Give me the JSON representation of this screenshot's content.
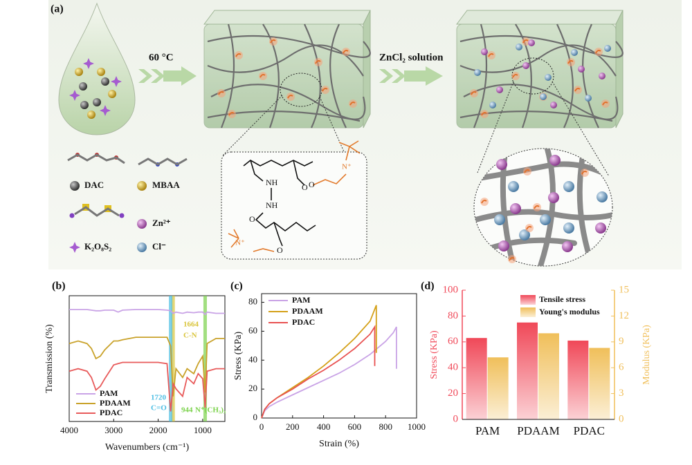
{
  "figure": {
    "label": "(a)",
    "step1": "60 °C",
    "step2": "ZnCl₂ solution",
    "legend": [
      "DAC",
      "MBAA",
      "K₂O₈S₂",
      "Zn²⁺",
      "Cl⁻"
    ],
    "structure": [
      "NH",
      "O",
      "O",
      "NH",
      "O",
      "O",
      "N⁺",
      "N⁺"
    ]
  },
  "chart_data": [
    {
      "type": "line",
      "label": "(b)",
      "xlabel": "Wavenumbers (cm⁻¹)",
      "ylabel": "Transmission (%)",
      "x": [
        4000,
        3800,
        3600,
        3500,
        3400,
        3300,
        3200,
        3000,
        2900,
        2800,
        2500,
        2200,
        2000,
        1800,
        1720,
        1664,
        1600,
        1450,
        1350,
        1200,
        1100,
        1000,
        944,
        900,
        700,
        500
      ],
      "xlim": [
        4000,
        500
      ],
      "xticks": [
        4000,
        3000,
        2000,
        1000
      ],
      "ylim": [
        0,
        100
      ],
      "legend": "lower left",
      "series": [
        {
          "name": "PAM",
          "color": "#c9a3e6",
          "values": [
            89,
            89,
            89,
            88.5,
            88,
            88,
            88.5,
            88.5,
            87,
            88.5,
            89,
            89,
            89,
            88.5,
            88,
            86,
            87,
            86,
            87,
            86.5,
            87,
            87,
            85,
            87,
            86,
            86
          ]
        },
        {
          "name": "PDAAM",
          "color": "#c9a22a",
          "values": [
            62,
            64,
            62,
            58,
            50,
            52,
            57,
            64,
            64,
            65,
            67,
            67,
            67,
            67,
            60,
            20,
            42,
            35,
            42,
            38,
            46,
            52,
            23,
            62,
            66,
            66
          ]
        },
        {
          "name": "PDAC",
          "color": "#e85a5a",
          "values": [
            40,
            42,
            40,
            35,
            25,
            28,
            34,
            45,
            46,
            47,
            47,
            47,
            47,
            46,
            8,
            30,
            26,
            20,
            35,
            30,
            38,
            34,
            11,
            40,
            42,
            42
          ]
        }
      ],
      "annotations": [
        {
          "x": 1664,
          "label": "1664",
          "note": "C-N",
          "color": "#d9c43a"
        },
        {
          "x": 1720,
          "label": "1720",
          "note": "C=O",
          "color": "#49bde3"
        },
        {
          "x": 944,
          "label": "944",
          "note": "N⁺(CH₃)₃",
          "color": "#7ad24a"
        }
      ]
    },
    {
      "type": "line",
      "label": "(c)",
      "xlabel": "Strain (%)",
      "ylabel": "Stress (KPa)",
      "xlim": [
        0,
        1000
      ],
      "xticks": [
        0,
        200,
        400,
        600,
        800,
        1000
      ],
      "ylim": [
        0,
        86
      ],
      "yticks": [
        0,
        20,
        40,
        60,
        80
      ],
      "legend": "upper left",
      "series": [
        {
          "name": "PAM",
          "color": "#c9a3e6",
          "x": [
            0,
            20,
            50,
            100,
            200,
            300,
            400,
            500,
            600,
            700,
            800,
            850,
            870,
            870
          ],
          "values": [
            0,
            5,
            8,
            11,
            16,
            21,
            26,
            31,
            37,
            44,
            53,
            59,
            63,
            34
          ]
        },
        {
          "name": "PDAAM",
          "color": "#d4a017",
          "x": [
            0,
            20,
            50,
            100,
            200,
            300,
            400,
            500,
            600,
            700,
            740,
            740
          ],
          "values": [
            0,
            6,
            10,
            14,
            21,
            28,
            36,
            45,
            55,
            67,
            78,
            45
          ]
        },
        {
          "name": "PDAC",
          "color": "#e85050",
          "x": [
            0,
            20,
            50,
            100,
            200,
            300,
            400,
            500,
            600,
            700,
            730,
            730
          ],
          "values": [
            0,
            6,
            10,
            14,
            20,
            27,
            33,
            40,
            48,
            58,
            63,
            36
          ]
        }
      ]
    },
    {
      "type": "bar",
      "label": "(d)",
      "ylabel": "Stress (KPa)",
      "y2label": "Modulus (KPa)",
      "categories": [
        "PAM",
        "PDAAM",
        "PDAC"
      ],
      "ylim": [
        0,
        100
      ],
      "yticks": [
        0,
        20,
        40,
        60,
        80,
        100
      ],
      "y2lim": [
        0,
        15
      ],
      "y2ticks": [
        0,
        3,
        6,
        9,
        12,
        15
      ],
      "legend": "upper center",
      "series": [
        {
          "name": "Tensile stress",
          "color": "#f04858",
          "values": [
            63,
            75,
            61
          ]
        },
        {
          "name": "Young's modulus",
          "color": "#f0bf5a",
          "axis": "y2",
          "values": [
            7.2,
            10.0,
            8.3
          ]
        }
      ]
    }
  ]
}
